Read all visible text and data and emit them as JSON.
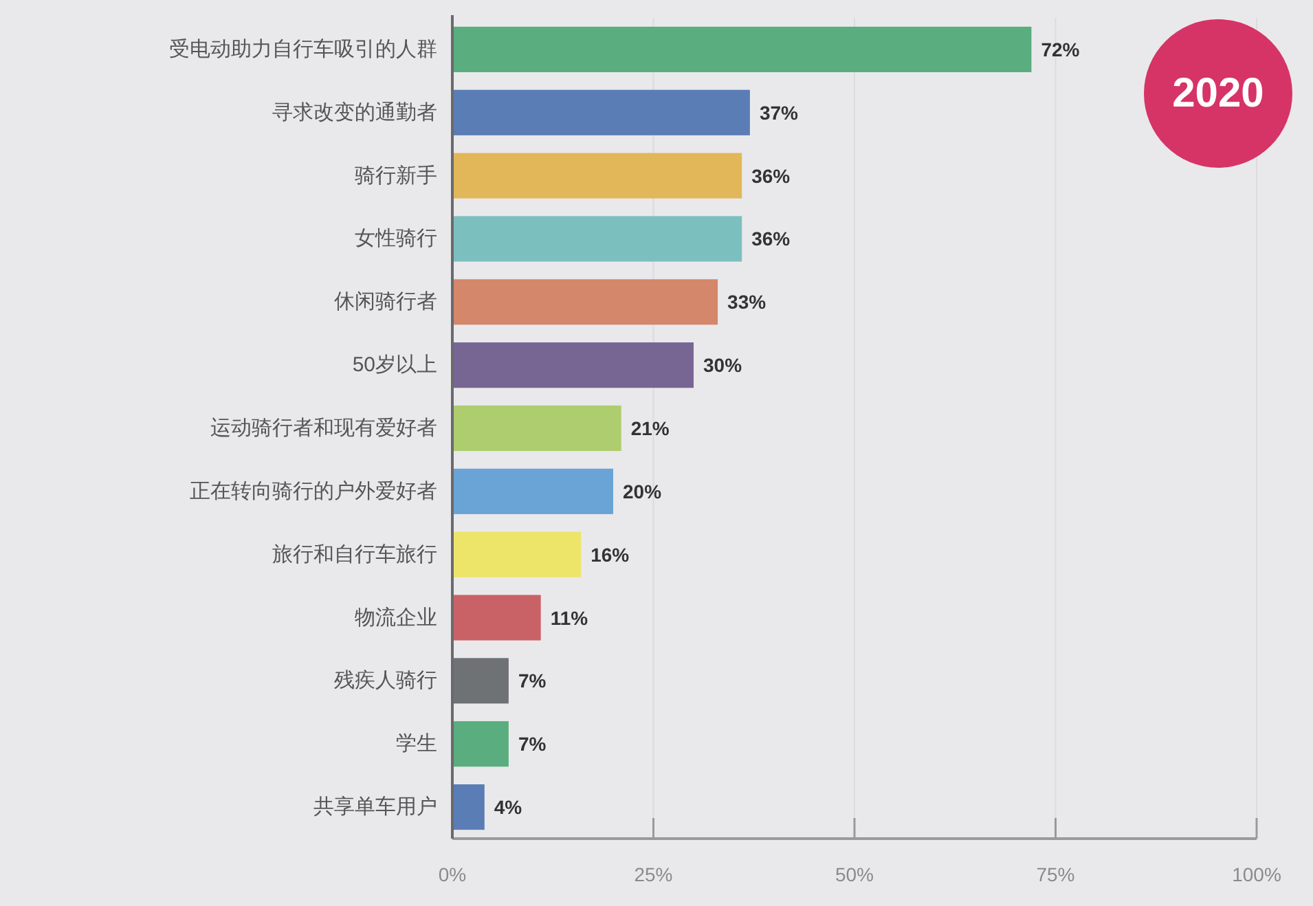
{
  "chart_data": {
    "type": "bar",
    "orientation": "horizontal",
    "categories": [
      "受电动助力自行车吸引的人群",
      "寻求改变的通勤者",
      "骑行新手",
      "女性骑行",
      "休闲骑行者",
      "50岁以上",
      "运动骑行者和现有爱好者",
      "正在转向骑行的户外爱好者",
      "旅行和自行车旅行",
      "物流企业",
      "残疾人骑行",
      "学生",
      "共享单车用户"
    ],
    "values": [
      72,
      37,
      36,
      36,
      33,
      30,
      21,
      20,
      16,
      11,
      7,
      7,
      4
    ],
    "value_labels": [
      "72%",
      "37%",
      "36%",
      "36%",
      "33%",
      "30%",
      "21%",
      "20%",
      "16%",
      "11%",
      "7%",
      "7%",
      "4%"
    ],
    "colors": [
      "#5aad7e",
      "#5a7db5",
      "#e2b75a",
      "#7cbfbf",
      "#d4876a",
      "#776594",
      "#aecd6e",
      "#6aa3d6",
      "#ede46a",
      "#c96267",
      "#6f7275",
      "#5aad7e",
      "#5a7db5"
    ],
    "xlim": [
      0,
      100
    ],
    "xticks": [
      {
        "value": 0,
        "label": "0%"
      },
      {
        "value": 25,
        "label": "25%"
      },
      {
        "value": 50,
        "label": "50%"
      },
      {
        "value": 75,
        "label": "75%"
      },
      {
        "value": 100,
        "label": "100%"
      }
    ],
    "grid": "x",
    "annotations": [
      "2020"
    ]
  }
}
